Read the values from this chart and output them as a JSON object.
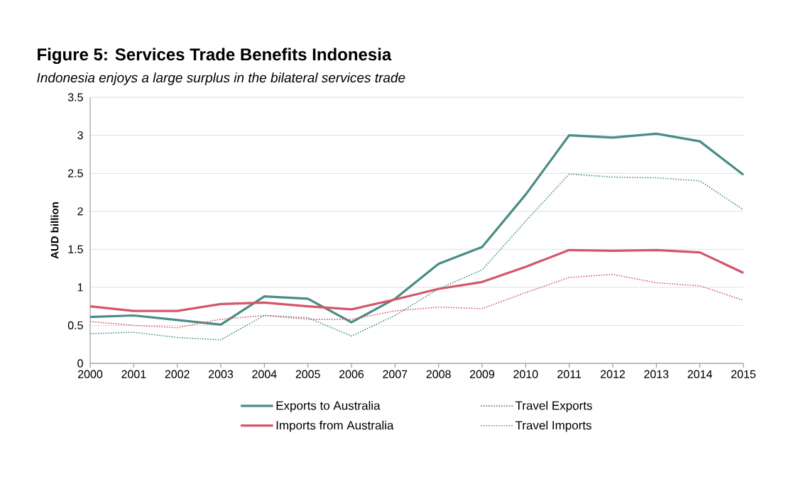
{
  "chart_data": {
    "type": "line",
    "title": "Figure 5: Services Trade Benefits Indonesia",
    "subtitle": "Indonesia enjoys a large surplus in the bilateral services trade",
    "ylabel": "AUD billion",
    "x": [
      2000,
      2001,
      2002,
      2003,
      2004,
      2005,
      2006,
      2007,
      2008,
      2009,
      2010,
      2011,
      2012,
      2013,
      2014,
      2015
    ],
    "series": [
      {
        "name": "Exports to Australia",
        "color": "#4a8c86",
        "line_style": "solid",
        "values": [
          0.61,
          0.63,
          0.57,
          0.51,
          0.88,
          0.85,
          0.54,
          0.85,
          1.31,
          1.53,
          2.22,
          3.0,
          2.97,
          3.02,
          2.92,
          2.48
        ]
      },
      {
        "name": "Travel Exports",
        "color": "#4a8c86",
        "line_style": "dotted",
        "values": [
          0.39,
          0.41,
          0.34,
          0.31,
          0.63,
          0.6,
          0.36,
          0.63,
          0.98,
          1.23,
          1.87,
          2.49,
          2.45,
          2.44,
          2.4,
          2.02
        ]
      },
      {
        "name": "Imports from Australia",
        "color": "#d4566a",
        "line_style": "solid",
        "values": [
          0.75,
          0.69,
          0.69,
          0.78,
          0.8,
          0.75,
          0.71,
          0.84,
          0.98,
          1.07,
          1.27,
          1.49,
          1.48,
          1.49,
          1.46,
          1.19
        ]
      },
      {
        "name": "Travel Imports",
        "color": "#d4566a",
        "line_style": "dotted",
        "values": [
          0.55,
          0.5,
          0.47,
          0.58,
          0.63,
          0.58,
          0.58,
          0.69,
          0.74,
          0.72,
          0.93,
          1.13,
          1.17,
          1.06,
          1.02,
          0.83
        ]
      }
    ],
    "xlim": [
      2000,
      2015
    ],
    "xticks": [
      2000,
      2001,
      2002,
      2003,
      2004,
      2005,
      2006,
      2007,
      2008,
      2009,
      2010,
      2011,
      2012,
      2013,
      2014,
      2015
    ],
    "ylim": [
      0,
      3.5
    ],
    "yticks": [
      0,
      0.5,
      1,
      1.5,
      2,
      2.5,
      3,
      3.5
    ],
    "grid": "y",
    "legend": "bottom",
    "marker": "none"
  }
}
